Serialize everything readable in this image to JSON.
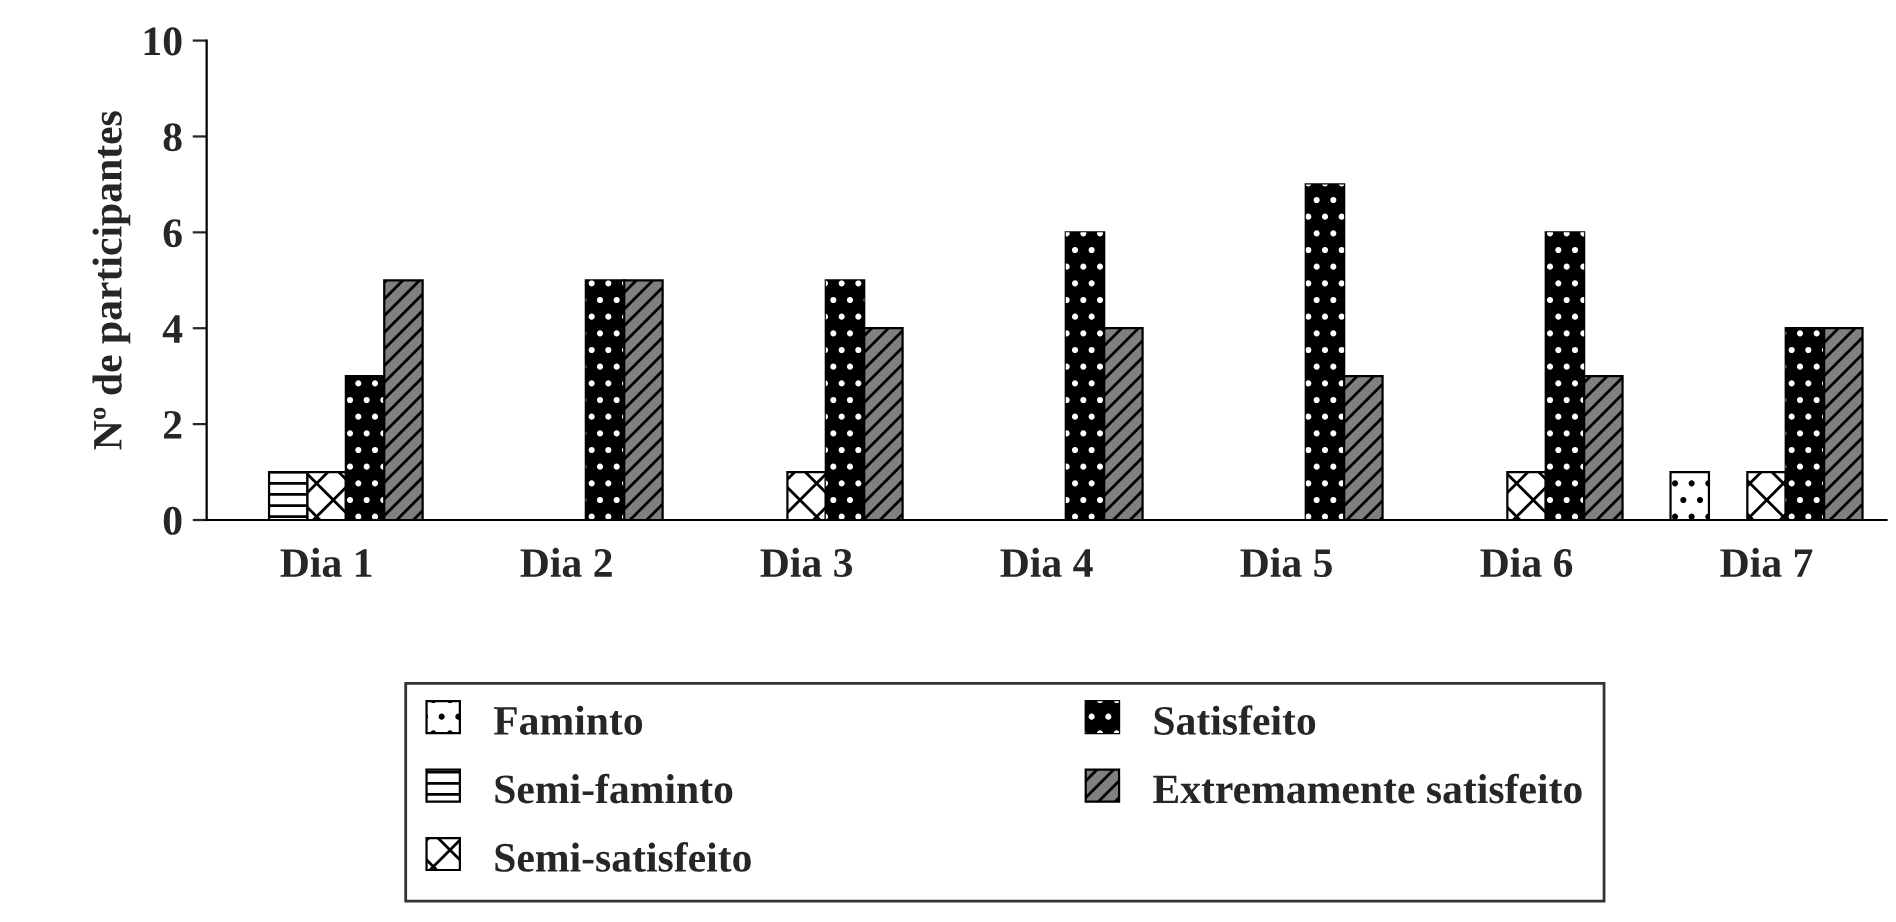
{
  "chart_data": {
    "type": "bar",
    "ylabel": "Nº de participantes",
    "categories": [
      "Dia 1",
      "Dia 2",
      "Dia 3",
      "Dia 4",
      "Dia 5",
      "Dia 6",
      "Dia 7"
    ],
    "series": [
      {
        "name": "Faminto",
        "color": "#ffffff",
        "values": [
          0,
          0,
          0,
          0,
          0,
          0,
          1
        ]
      },
      {
        "name": "Semi-faminto",
        "color": "#ffffff",
        "values": [
          1,
          0,
          0,
          0,
          0,
          0,
          0
        ]
      },
      {
        "name": "Semi-satisfeito",
        "color": "#ffffff",
        "values": [
          1,
          0,
          1,
          0,
          0,
          1,
          1
        ]
      },
      {
        "name": "Satisfeito",
        "color": "#000000",
        "values": [
          3,
          5,
          5,
          6,
          7,
          6,
          4
        ]
      },
      {
        "name": "Extremamente satisfeito",
        "color": "#808080",
        "values": [
          5,
          5,
          4,
          4,
          3,
          3,
          4
        ]
      }
    ],
    "ylim": [
      0,
      10
    ],
    "yticks": [
      0,
      2,
      4,
      6,
      8,
      10
    ],
    "grid": false,
    "legend": "bottom"
  }
}
